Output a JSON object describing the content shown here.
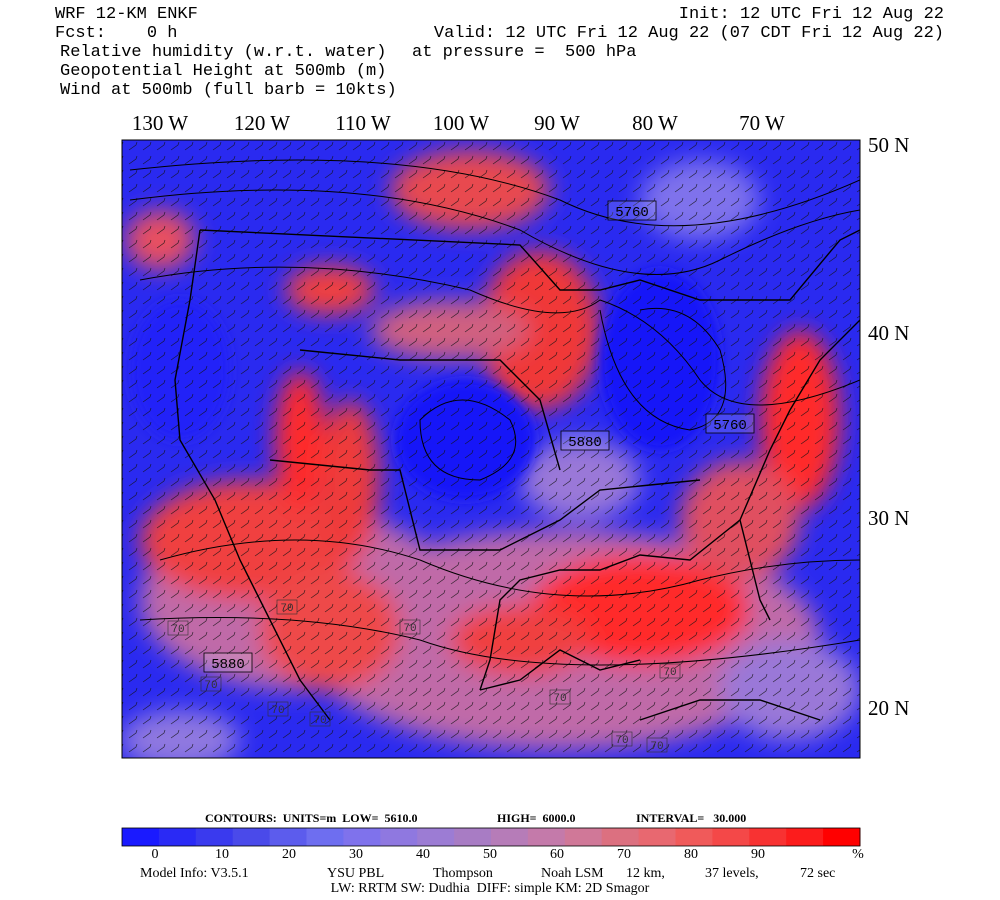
{
  "header": {
    "left": [
      "WRF 12-KM ENKF",
      "Fcst:    0 h",
      "Relative humidity (w.r.t. water)",
      "Geopotential Height at 500mb (m)",
      "Wind at 500mb (full barb = 10kts)"
    ],
    "right": [
      "Init: 12 UTC Fri 12 Aug 22",
      "Valid: 12 UTC Fri 12 Aug 22 (07 CDT Fri 12 Aug 22)",
      "at pressure =  500 hPa"
    ]
  },
  "map": {
    "lon_labels": [
      "130 W",
      "120 W",
      "110 W",
      "100 W",
      "90 W",
      "80 W",
      "70 W"
    ],
    "lat_labels": [
      "50 N",
      "40 N",
      "30 N",
      "20 N"
    ],
    "contour_labels": [
      "5760",
      "5880",
      "5760",
      "5880"
    ],
    "rh_labels": [
      "70",
      "70",
      "70",
      "70",
      "70",
      "70",
      "70",
      "70",
      "70",
      "70"
    ]
  },
  "footer": {
    "contours": [
      "CONTOURS:  UNITS=m  LOW=  5610.0",
      "HIGH=  6000.0",
      "INTERVAL=   30.000"
    ],
    "colorbar": {
      "colors": [
        "#1a1aff",
        "#2a2af5",
        "#3a3aee",
        "#4a4aea",
        "#5c5ced",
        "#6e6ef0",
        "#7f72ec",
        "#8f78e0",
        "#9c7cd4",
        "#a87cc4",
        "#b67cb8",
        "#c47aaa",
        "#d07898",
        "#dc7080",
        "#e86870",
        "#f05a5a",
        "#f44848",
        "#f83232",
        "#fc1c1c",
        "#ff0000"
      ],
      "labels": [
        "0",
        "10",
        "20",
        "30",
        "40",
        "50",
        "60",
        "70",
        "80",
        "90",
        "%"
      ]
    },
    "model_info": [
      "Model Info: V3.5.1",
      "YSU PBL",
      "Thompson",
      "Noah LSM",
      "12 km,",
      "37 levels,",
      "72 sec"
    ],
    "physics": "LW: RRTM SW: Dudhia  DIFF: simple KM: 2D Smagor"
  }
}
